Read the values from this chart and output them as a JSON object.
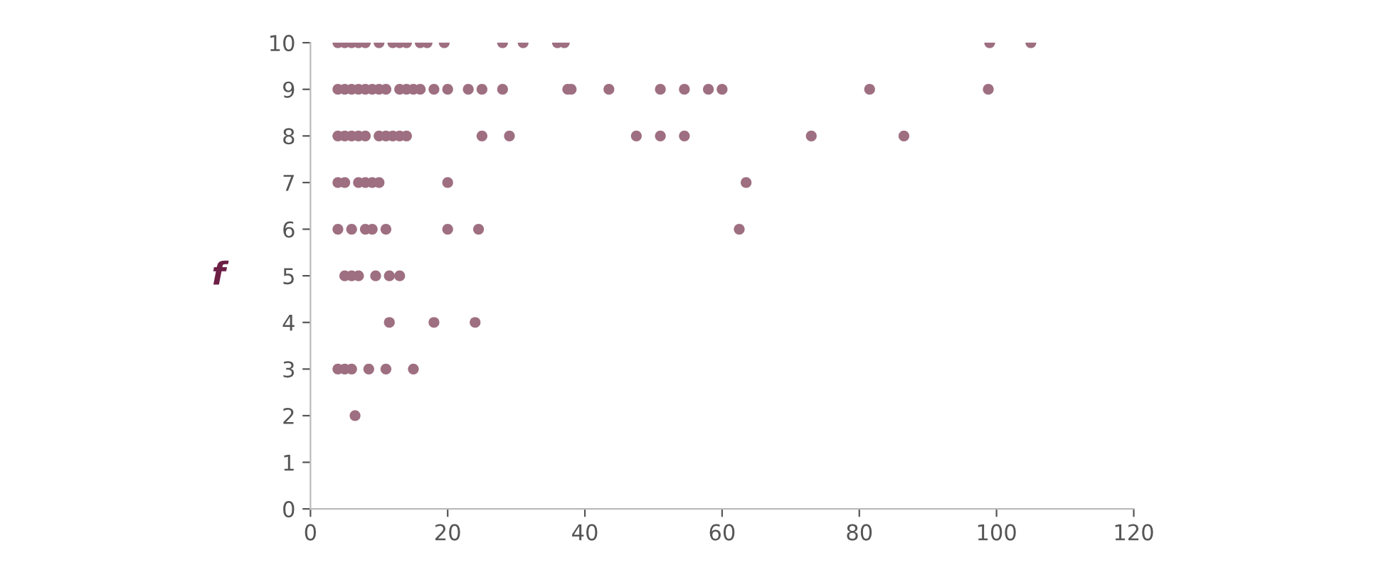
{
  "chart_data": {
    "type": "scatter",
    "ylabel": "f",
    "color": "#9e6f80",
    "marker": "circle",
    "grid": false,
    "legend": false,
    "xlim": [
      0,
      120
    ],
    "xticks": [
      0,
      20,
      40,
      60,
      80,
      100,
      120
    ],
    "ylim": [
      0,
      10
    ],
    "yticks": [
      0,
      1,
      2,
      3,
      4,
      5,
      6,
      7,
      8,
      9,
      10
    ],
    "x": [
      4,
      5,
      6,
      7,
      8,
      10,
      12,
      13,
      14,
      16,
      17,
      19.5,
      28,
      31,
      36,
      37,
      99,
      105,
      4,
      5,
      6,
      7,
      8,
      9,
      10,
      11,
      13,
      14,
      15,
      16,
      18,
      20,
      23,
      25,
      28,
      37.5,
      38,
      43.5,
      51,
      54.5,
      58,
      60,
      81.5,
      98.8,
      4,
      5,
      6,
      7,
      8,
      10,
      11,
      12,
      13,
      14,
      25,
      29,
      47.5,
      51,
      54.5,
      73,
      86.5,
      4,
      5,
      7,
      8,
      9,
      10,
      20,
      63.5,
      4,
      6,
      8,
      9,
      11,
      20,
      24.5,
      62.5,
      5,
      6,
      7,
      9.5,
      11.5,
      13,
      11.5,
      18,
      24,
      4,
      5,
      6,
      8.5,
      11,
      15,
      6.5
    ],
    "values": [
      10,
      10,
      10,
      10,
      10,
      10,
      10,
      10,
      10,
      10,
      10,
      10,
      10,
      10,
      10,
      10,
      10,
      10,
      9,
      9,
      9,
      9,
      9,
      9,
      9,
      9,
      9,
      9,
      9,
      9,
      9,
      9,
      9,
      9,
      9,
      9,
      9,
      9,
      9,
      9,
      9,
      9,
      9,
      9,
      8,
      8,
      8,
      8,
      8,
      8,
      8,
      8,
      8,
      8,
      8,
      8,
      8,
      8,
      8,
      8,
      8,
      7,
      7,
      7,
      7,
      7,
      7,
      7,
      7,
      6,
      6,
      6,
      6,
      6,
      6,
      6,
      6,
      5,
      5,
      5,
      5,
      5,
      5,
      4,
      4,
      4,
      3,
      3,
      3,
      3,
      3,
      3,
      2
    ]
  }
}
